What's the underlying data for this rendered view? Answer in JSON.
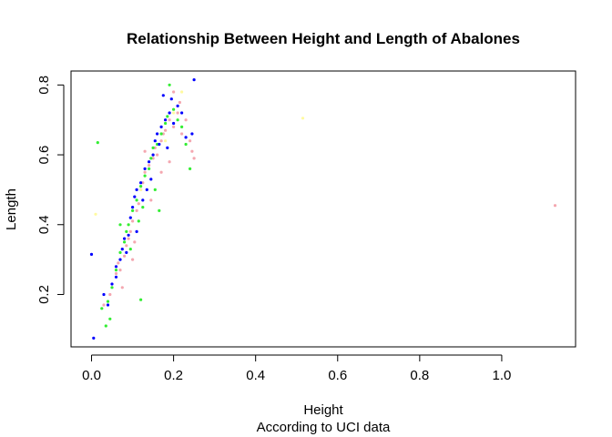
{
  "chart_data": {
    "type": "scatter",
    "title": "Relationship Between Height and Length of Abalones",
    "xlabel": "Height",
    "sublabel": "According to UCI data",
    "ylabel": "Length",
    "xlim": [
      -0.05,
      1.18
    ],
    "ylim": [
      0.05,
      0.84
    ],
    "xticks": [
      0.0,
      0.2,
      0.4,
      0.6,
      0.8,
      1.0
    ],
    "xtick_labels": [
      "0.0",
      "0.2",
      "0.4",
      "0.6",
      "0.8",
      "1.0"
    ],
    "yticks": [
      0.2,
      0.4,
      0.6,
      0.8
    ],
    "ytick_labels": [
      "0.2",
      "0.4",
      "0.6",
      "0.8"
    ],
    "series": [
      {
        "name": "pink",
        "color": "#f4a7b0",
        "points": [
          [
            0.03,
            0.17
          ],
          [
            0.045,
            0.2
          ],
          [
            0.06,
            0.26
          ],
          [
            0.065,
            0.29
          ],
          [
            0.07,
            0.27
          ],
          [
            0.08,
            0.31
          ],
          [
            0.085,
            0.34
          ],
          [
            0.09,
            0.36
          ],
          [
            0.1,
            0.41
          ],
          [
            0.11,
            0.44
          ],
          [
            0.115,
            0.46
          ],
          [
            0.12,
            0.5
          ],
          [
            0.125,
            0.52
          ],
          [
            0.13,
            0.55
          ],
          [
            0.14,
            0.57
          ],
          [
            0.15,
            0.59
          ],
          [
            0.155,
            0.62
          ],
          [
            0.16,
            0.6
          ],
          [
            0.17,
            0.64
          ],
          [
            0.175,
            0.66
          ],
          [
            0.18,
            0.67
          ],
          [
            0.19,
            0.7
          ],
          [
            0.2,
            0.68
          ],
          [
            0.21,
            0.72
          ],
          [
            0.22,
            0.66
          ],
          [
            0.23,
            0.7
          ],
          [
            0.24,
            0.64
          ],
          [
            0.25,
            0.59
          ],
          [
            0.245,
            0.61
          ],
          [
            0.2,
            0.78
          ],
          [
            0.215,
            0.75
          ],
          [
            0.13,
            0.61
          ],
          [
            0.145,
            0.47
          ],
          [
            0.1,
            0.3
          ],
          [
            0.075,
            0.22
          ],
          [
            1.13,
            0.455
          ],
          [
            0.17,
            0.55
          ],
          [
            0.19,
            0.58
          ],
          [
            0.095,
            0.38
          ],
          [
            0.105,
            0.35
          ]
        ]
      },
      {
        "name": "yellow",
        "color": "#fffaa0",
        "points": [
          [
            0.515,
            0.705
          ],
          [
            0.01,
            0.43
          ],
          [
            0.06,
            0.28
          ],
          [
            0.12,
            0.5
          ],
          [
            0.18,
            0.64
          ],
          [
            0.2,
            0.72
          ],
          [
            0.09,
            0.4
          ],
          [
            0.15,
            0.6
          ],
          [
            0.22,
            0.78
          ]
        ]
      },
      {
        "name": "green",
        "color": "#33ee33",
        "points": [
          [
            0.015,
            0.635
          ],
          [
            0.025,
            0.16
          ],
          [
            0.04,
            0.18
          ],
          [
            0.05,
            0.22
          ],
          [
            0.06,
            0.27
          ],
          [
            0.07,
            0.32
          ],
          [
            0.08,
            0.35
          ],
          [
            0.085,
            0.38
          ],
          [
            0.09,
            0.4
          ],
          [
            0.1,
            0.44
          ],
          [
            0.11,
            0.47
          ],
          [
            0.12,
            0.51
          ],
          [
            0.125,
            0.45
          ],
          [
            0.13,
            0.54
          ],
          [
            0.14,
            0.56
          ],
          [
            0.145,
            0.59
          ],
          [
            0.15,
            0.62
          ],
          [
            0.16,
            0.63
          ],
          [
            0.17,
            0.66
          ],
          [
            0.18,
            0.69
          ],
          [
            0.185,
            0.71
          ],
          [
            0.19,
            0.8
          ],
          [
            0.2,
            0.73
          ],
          [
            0.21,
            0.7
          ],
          [
            0.22,
            0.68
          ],
          [
            0.23,
            0.63
          ],
          [
            0.24,
            0.56
          ],
          [
            0.12,
            0.185
          ],
          [
            0.045,
            0.13
          ],
          [
            0.035,
            0.11
          ],
          [
            0.165,
            0.44
          ],
          [
            0.07,
            0.4
          ],
          [
            0.095,
            0.33
          ],
          [
            0.155,
            0.5
          ],
          [
            0.115,
            0.41
          ]
        ]
      },
      {
        "name": "blue",
        "color": "#0000ff",
        "points": [
          [
            0.005,
            0.075
          ],
          [
            0.0,
            0.315
          ],
          [
            0.03,
            0.2
          ],
          [
            0.04,
            0.17
          ],
          [
            0.05,
            0.23
          ],
          [
            0.06,
            0.28
          ],
          [
            0.07,
            0.3
          ],
          [
            0.075,
            0.33
          ],
          [
            0.08,
            0.36
          ],
          [
            0.09,
            0.37
          ],
          [
            0.095,
            0.42
          ],
          [
            0.1,
            0.45
          ],
          [
            0.105,
            0.48
          ],
          [
            0.11,
            0.5
          ],
          [
            0.12,
            0.52
          ],
          [
            0.13,
            0.56
          ],
          [
            0.14,
            0.58
          ],
          [
            0.15,
            0.6
          ],
          [
            0.155,
            0.64
          ],
          [
            0.16,
            0.66
          ],
          [
            0.165,
            0.63
          ],
          [
            0.17,
            0.68
          ],
          [
            0.18,
            0.7
          ],
          [
            0.19,
            0.72
          ],
          [
            0.2,
            0.69
          ],
          [
            0.21,
            0.74
          ],
          [
            0.22,
            0.72
          ],
          [
            0.25,
            0.815
          ],
          [
            0.245,
            0.66
          ],
          [
            0.23,
            0.65
          ],
          [
            0.175,
            0.77
          ],
          [
            0.195,
            0.76
          ],
          [
            0.135,
            0.5
          ],
          [
            0.145,
            0.53
          ],
          [
            0.085,
            0.32
          ],
          [
            0.06,
            0.25
          ],
          [
            0.11,
            0.38
          ],
          [
            0.125,
            0.47
          ],
          [
            0.185,
            0.62
          ]
        ]
      }
    ]
  }
}
